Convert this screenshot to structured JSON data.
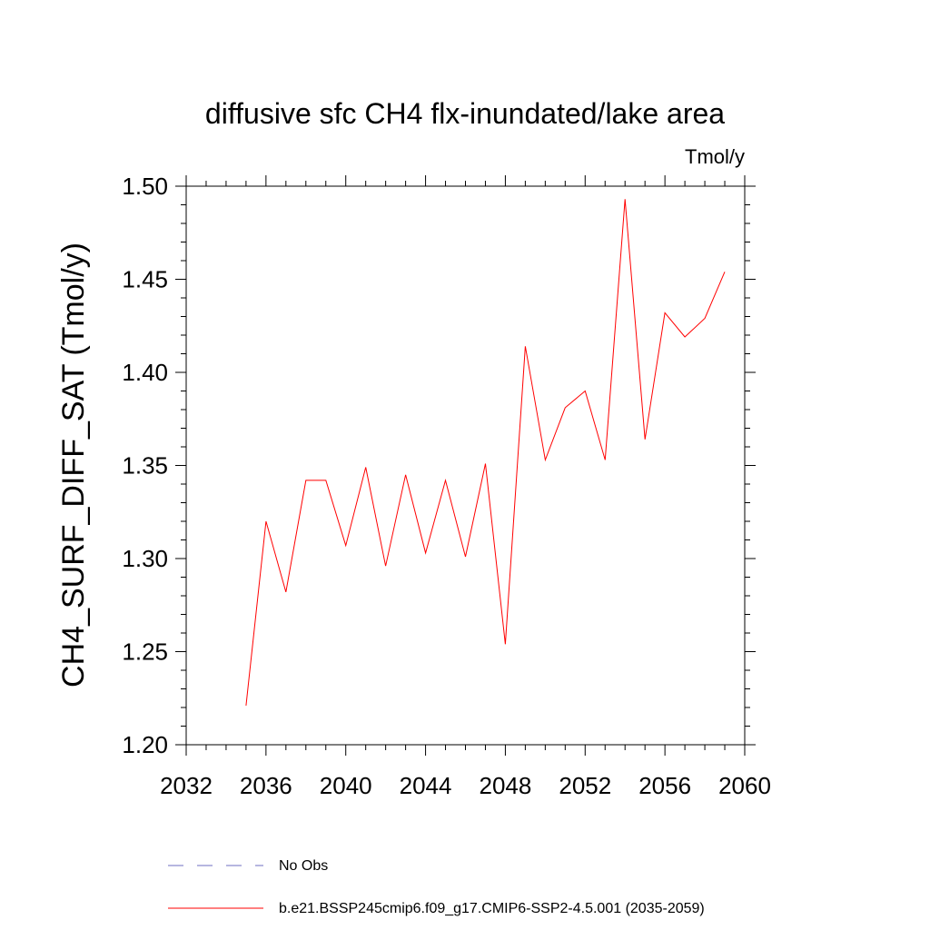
{
  "chart_data": {
    "type": "line",
    "title": "diffusive sfc CH4 flx-inundated/lake area",
    "units": "Tmol/y",
    "ylabel": "CH4_SURF_DIFF_SAT  (Tmol/y)",
    "xlabel": "",
    "xlim": [
      2032,
      2060
    ],
    "ylim": [
      1.2,
      1.5
    ],
    "x_ticks": [
      "2032",
      "2036",
      "2040",
      "2044",
      "2048",
      "2052",
      "2056",
      "2060"
    ],
    "y_ticks": [
      "1.20",
      "1.25",
      "1.30",
      "1.35",
      "1.40",
      "1.45",
      "1.50"
    ],
    "grid": false,
    "legend_position": "bottom",
    "series": [
      {
        "name": "b.e21.BSSP245cmip6.f09_g17.CMIP6-SSP2-4.5.001 (2035-2059)",
        "color": "#ff0000",
        "style": "solid",
        "x": [
          2035,
          2036,
          2037,
          2038,
          2039,
          2040,
          2041,
          2042,
          2043,
          2044,
          2045,
          2046,
          2047,
          2048,
          2049,
          2050,
          2051,
          2052,
          2053,
          2054,
          2055,
          2056,
          2057,
          2058,
          2059
        ],
        "y": [
          1.221,
          1.32,
          1.282,
          1.342,
          1.342,
          1.307,
          1.349,
          1.296,
          1.345,
          1.303,
          1.342,
          1.301,
          1.351,
          1.254,
          1.414,
          1.353,
          1.381,
          1.39,
          1.353,
          1.493,
          1.364,
          1.432,
          1.419,
          1.429,
          1.454
        ]
      }
    ],
    "legend": [
      {
        "label": "No Obs",
        "color": "#6f6fc0",
        "style": "dashed"
      },
      {
        "label": "b.e21.BSSP245cmip6.f09_g17.CMIP6-SSP2-4.5.001 (2035-2059)",
        "color": "#ff0000",
        "style": "solid"
      }
    ]
  }
}
